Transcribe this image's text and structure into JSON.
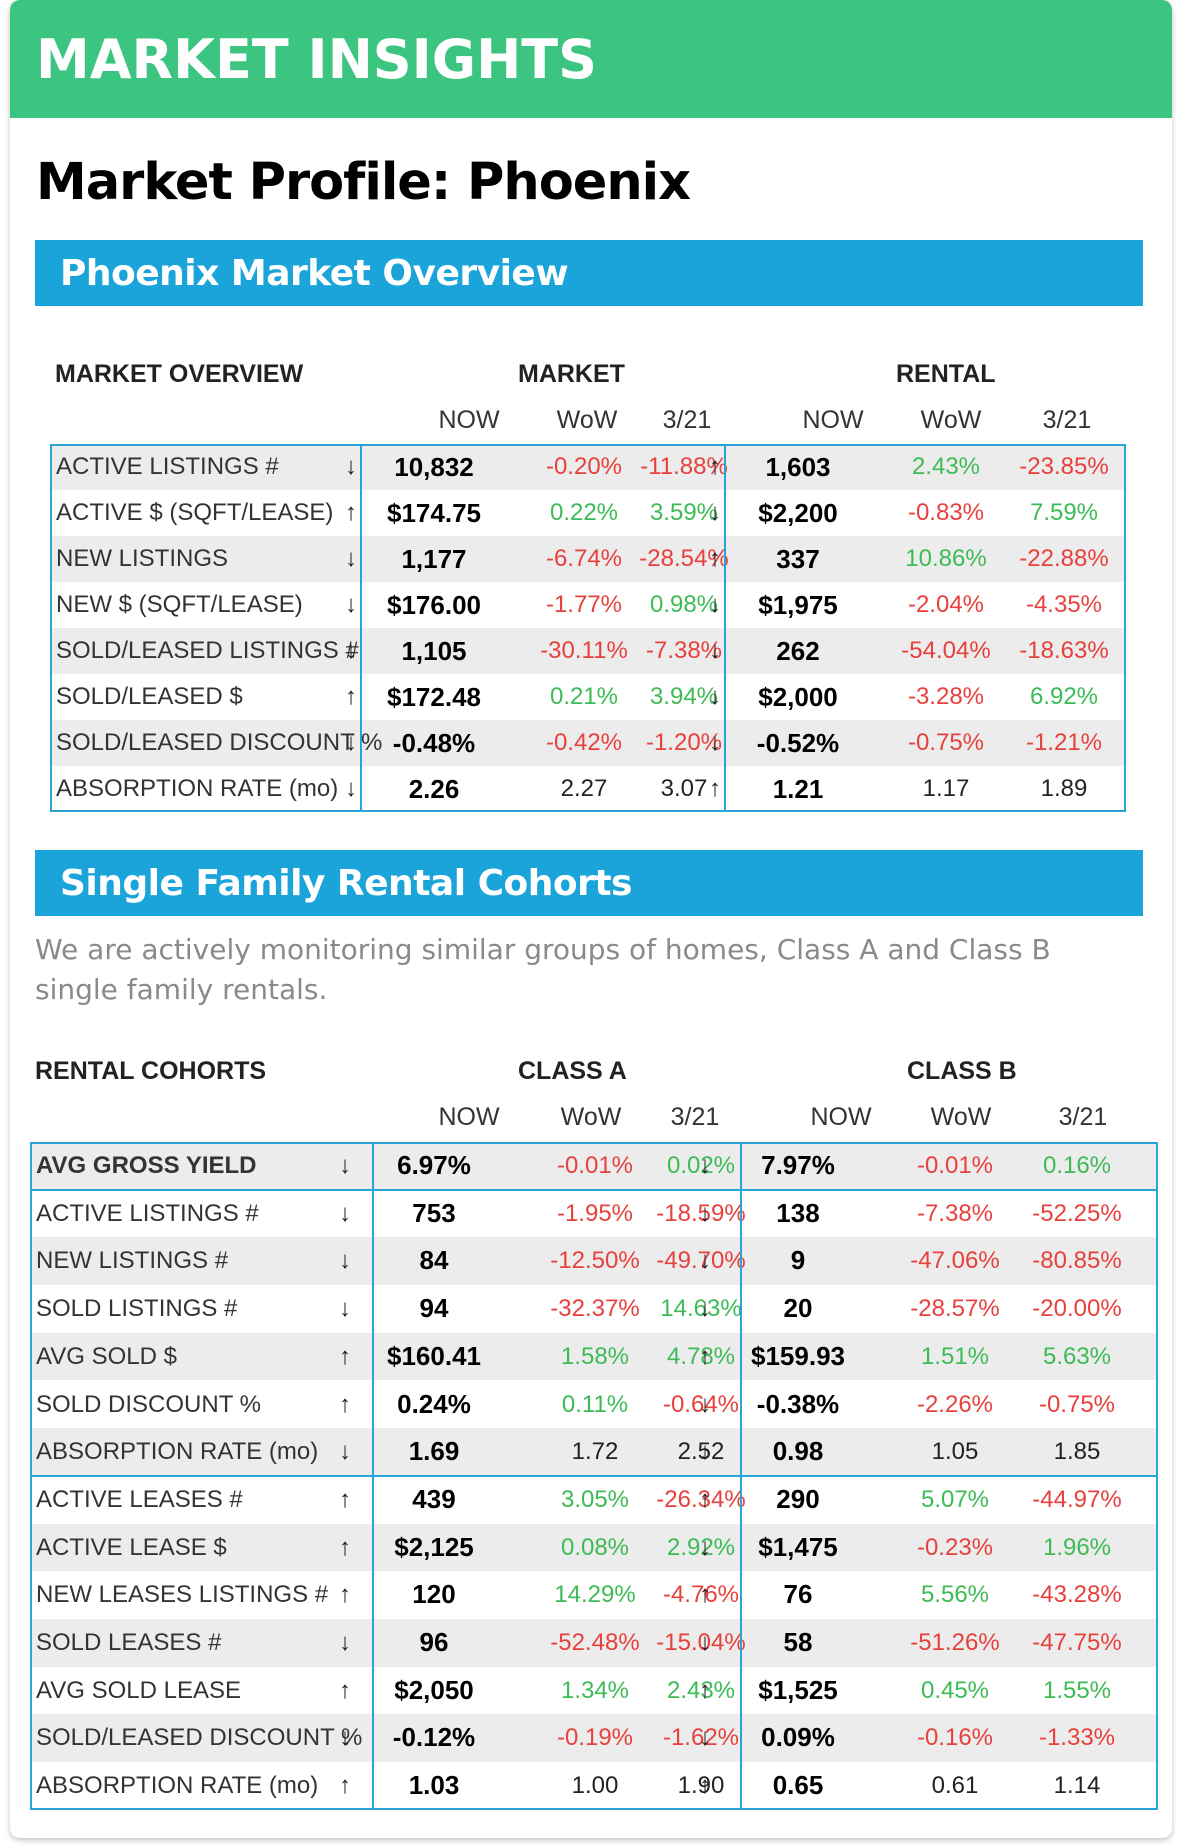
{
  "header": {
    "title": "MARKET INSIGHTS"
  },
  "page_title": "Market Profile: Phoenix",
  "sections": {
    "overview_title": "Phoenix Market Overview",
    "cohorts_title": "Single Family Rental Cohorts",
    "cohorts_description": "We are actively monitoring similar groups of homes, Class A and Class B single family rentals."
  },
  "colors": {
    "green_bar": "#3cc481",
    "blue_band": "#1aa4d9",
    "negative": "#e8403c",
    "positive": "#3dbb55",
    "table_border": "#2aa3d6"
  },
  "overview_table": {
    "title": "MARKET OVERVIEW",
    "group_a": "MARKET",
    "group_b": "RENTAL",
    "subheaders": [
      "NOW",
      "WoW",
      "3/21"
    ],
    "rows": [
      {
        "label": "ACTIVE LISTINGS #",
        "a_dir": "↓",
        "a_now": "10,832",
        "a_wow": "-0.20%",
        "a_ytd": "-11.88%",
        "b_dir": "↑",
        "b_now": "1,603",
        "b_wow": "2.43%",
        "b_ytd": "-23.85%"
      },
      {
        "label": "ACTIVE $ (SQFT/LEASE)",
        "a_dir": "↑",
        "a_now": "$174.75",
        "a_wow": "0.22%",
        "a_ytd": "3.59%",
        "b_dir": "↓",
        "b_now": "$2,200",
        "b_wow": "-0.83%",
        "b_ytd": "7.59%"
      },
      {
        "label": "NEW LISTINGS",
        "a_dir": "↓",
        "a_now": "1,177",
        "a_wow": "-6.74%",
        "a_ytd": "-28.54%",
        "b_dir": "↑",
        "b_now": "337",
        "b_wow": "10.86%",
        "b_ytd": "-22.88%"
      },
      {
        "label": "NEW $ (SQFT/LEASE)",
        "a_dir": "↓",
        "a_now": "$176.00",
        "a_wow": "-1.77%",
        "a_ytd": "0.98%",
        "b_dir": "↓",
        "b_now": "$1,975",
        "b_wow": "-2.04%",
        "b_ytd": "-4.35%"
      },
      {
        "label": "SOLD/LEASED LISTINGS #",
        "a_dir": "↓",
        "a_now": "1,105",
        "a_wow": "-30.11%",
        "a_ytd": "-7.38%",
        "b_dir": "↓",
        "b_now": "262",
        "b_wow": "-54.04%",
        "b_ytd": "-18.63%"
      },
      {
        "label": "SOLD/LEASED $",
        "a_dir": "↑",
        "a_now": "$172.48",
        "a_wow": "0.21%",
        "a_ytd": "3.94%",
        "b_dir": "↓",
        "b_now": "$2,000",
        "b_wow": "-3.28%",
        "b_ytd": "6.92%"
      },
      {
        "label": "SOLD/LEASED DISCOUNT %",
        "a_dir": "↓",
        "a_now": "-0.48%",
        "a_wow": "-0.42%",
        "a_ytd": "-1.20%",
        "b_dir": "↓",
        "b_now": "-0.52%",
        "b_wow": "-0.75%",
        "b_ytd": "-1.21%"
      },
      {
        "label": "ABSORPTION RATE (mo)",
        "a_dir": "↓",
        "a_now": "2.26",
        "a_wow": "2.27",
        "a_ytd": "3.07",
        "b_dir": "↑",
        "b_now": "1.21",
        "b_wow": "1.17",
        "b_ytd": "1.89"
      }
    ]
  },
  "cohort_table": {
    "title": "RENTAL COHORTS",
    "group_a": "CLASS A",
    "group_b": "CLASS B",
    "subheaders": [
      "NOW",
      "WoW",
      "3/21"
    ],
    "rows": [
      {
        "label": "AVG GROSS YIELD",
        "a_dir": "↓",
        "a_now": "6.97%",
        "a_wow": "-0.01%",
        "a_ytd": "0.02%",
        "b_dir": "↓",
        "b_now": "7.97%",
        "b_wow": "-0.01%",
        "b_ytd": "0.16%"
      },
      {
        "label": "ACTIVE LISTINGS #",
        "a_dir": "↓",
        "a_now": "753",
        "a_wow": "-1.95%",
        "a_ytd": "-18.59%",
        "b_dir": "↓",
        "b_now": "138",
        "b_wow": "-7.38%",
        "b_ytd": "-52.25%"
      },
      {
        "label": "NEW LISTINGS #",
        "a_dir": "↓",
        "a_now": "84",
        "a_wow": "-12.50%",
        "a_ytd": "-49.70%",
        "b_dir": "↓",
        "b_now": "9",
        "b_wow": "-47.06%",
        "b_ytd": "-80.85%"
      },
      {
        "label": "SOLD LISTINGS #",
        "a_dir": "↓",
        "a_now": "94",
        "a_wow": "-32.37%",
        "a_ytd": "14.63%",
        "b_dir": "↓",
        "b_now": "20",
        "b_wow": "-28.57%",
        "b_ytd": "-20.00%"
      },
      {
        "label": "AVG SOLD $",
        "a_dir": "↑",
        "a_now": "$160.41",
        "a_wow": "1.58%",
        "a_ytd": "4.78%",
        "b_dir": "↑",
        "b_now": "$159.93",
        "b_wow": "1.51%",
        "b_ytd": "5.63%"
      },
      {
        "label": "SOLD DISCOUNT %",
        "a_dir": "↑",
        "a_now": "0.24%",
        "a_wow": "0.11%",
        "a_ytd": "-0.64%",
        "b_dir": "↓",
        "b_now": "-0.38%",
        "b_wow": "-2.26%",
        "b_ytd": "-0.75%"
      },
      {
        "label": "ABSORPTION RATE (mo)",
        "a_dir": "↓",
        "a_now": "1.69",
        "a_wow": "1.72",
        "a_ytd": "2.52",
        "b_dir": "↓",
        "b_now": "0.98",
        "b_wow": "1.05",
        "b_ytd": "1.85"
      },
      {
        "label": "ACTIVE LEASES #",
        "a_dir": "↑",
        "a_now": "439",
        "a_wow": "3.05%",
        "a_ytd": "-26.34%",
        "b_dir": "↑",
        "b_now": "290",
        "b_wow": "5.07%",
        "b_ytd": "-44.97%"
      },
      {
        "label": "ACTIVE LEASE $",
        "a_dir": "↑",
        "a_now": "$2,125",
        "a_wow": "0.08%",
        "a_ytd": "2.92%",
        "b_dir": "↓",
        "b_now": "$1,475",
        "b_wow": "-0.23%",
        "b_ytd": "1.96%"
      },
      {
        "label": "NEW LEASES LISTINGS #",
        "a_dir": "↑",
        "a_now": "120",
        "a_wow": "14.29%",
        "a_ytd": "-4.76%",
        "b_dir": "↑",
        "b_now": "76",
        "b_wow": "5.56%",
        "b_ytd": "-43.28%"
      },
      {
        "label": "SOLD LEASES #",
        "a_dir": "↓",
        "a_now": "96",
        "a_wow": "-52.48%",
        "a_ytd": "-15.04%",
        "b_dir": "↓",
        "b_now": "58",
        "b_wow": "-51.26%",
        "b_ytd": "-47.75%"
      },
      {
        "label": "AVG SOLD LEASE",
        "a_dir": "↑",
        "a_now": "$2,050",
        "a_wow": "1.34%",
        "a_ytd": "2.43%",
        "b_dir": "↑",
        "b_now": "$1,525",
        "b_wow": "0.45%",
        "b_ytd": "1.55%"
      },
      {
        "label": "SOLD/LEASED DISCOUNT %",
        "a_dir": "↓",
        "a_now": "-0.12%",
        "a_wow": "-0.19%",
        "a_ytd": "-1.62%",
        "b_dir": "↓",
        "b_now": "0.09%",
        "b_wow": "-0.16%",
        "b_ytd": "-1.33%"
      },
      {
        "label": "ABSORPTION RATE (mo)",
        "a_dir": "↑",
        "a_now": "1.03",
        "a_wow": "1.00",
        "a_ytd": "1.90",
        "b_dir": "↑",
        "b_now": "0.65",
        "b_wow": "0.61",
        "b_ytd": "1.14"
      }
    ]
  }
}
